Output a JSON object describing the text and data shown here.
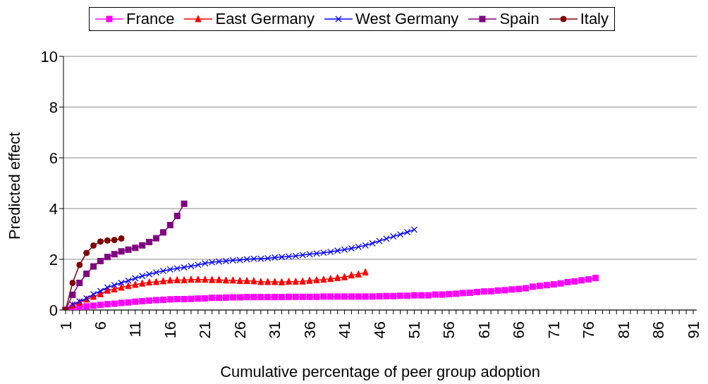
{
  "chart_data": {
    "type": "line",
    "xlabel": "Cumulative percentage of peer group adoption",
    "ylabel": "Predicted effect",
    "categories": [
      "1",
      null,
      null,
      null,
      null,
      "6",
      null,
      null,
      null,
      null,
      "11",
      null,
      null,
      null,
      null,
      "16",
      null,
      null,
      null,
      null,
      "21",
      null,
      null,
      null,
      null,
      "26",
      null,
      null,
      null,
      null,
      "31",
      null,
      null,
      null,
      null,
      "36",
      null,
      null,
      null,
      null,
      "41",
      null,
      null,
      null,
      null,
      "46",
      null,
      null,
      null,
      null,
      "51",
      null,
      null,
      null,
      null,
      "56",
      null,
      null,
      null,
      null,
      "61",
      null,
      null,
      null,
      null,
      "66",
      null,
      null,
      null,
      null,
      "71",
      null,
      null,
      null,
      null,
      "76",
      null,
      null,
      null,
      null,
      "81",
      null,
      null,
      null,
      null,
      "86",
      null,
      null,
      null,
      null,
      "91"
    ],
    "series": [
      {
        "name": "France",
        "color": "#ff00ff",
        "marker": "square",
        "values": [
          0,
          0.09,
          0.12,
          0.14,
          0.17,
          0.2,
          0.23,
          0.25,
          0.28,
          0.3,
          0.33,
          0.35,
          0.37,
          0.39,
          0.4,
          0.42,
          0.43,
          0.43,
          0.44,
          0.45,
          0.46,
          0.48,
          0.48,
          0.49,
          0.5,
          0.5,
          0.51,
          0.51,
          0.51,
          0.51,
          0.51,
          0.51,
          0.52,
          0.52,
          0.52,
          0.52,
          0.52,
          0.53,
          0.53,
          0.53,
          0.53,
          0.53,
          0.53,
          0.53,
          0.53,
          0.54,
          0.55,
          0.55,
          0.56,
          0.56,
          0.58,
          0.58,
          0.58,
          0.61,
          0.61,
          0.63,
          0.64,
          0.67,
          0.68,
          0.71,
          0.73,
          0.74,
          0.77,
          0.78,
          0.81,
          0.83,
          0.86,
          0.92,
          0.95,
          0.98,
          1.01,
          1.05,
          1.1,
          1.13,
          1.17,
          1.21,
          1.26,
          null,
          null,
          null,
          null,
          null,
          null,
          null,
          null,
          null,
          null,
          null,
          null,
          null,
          null
        ]
      },
      {
        "name": "East Germany",
        "color": "#ff0000",
        "marker": "triangle",
        "values": [
          0,
          0.19,
          0.3,
          0.42,
          0.53,
          0.63,
          0.77,
          0.82,
          0.89,
          0.95,
          1.0,
          1.05,
          1.09,
          1.11,
          1.14,
          1.17,
          1.18,
          1.18,
          1.2,
          1.2,
          1.2,
          1.19,
          1.19,
          1.17,
          1.17,
          1.15,
          1.15,
          1.14,
          1.11,
          1.11,
          1.11,
          1.1,
          1.12,
          1.12,
          1.13,
          1.16,
          1.18,
          1.2,
          1.23,
          1.27,
          1.3,
          1.37,
          1.41,
          1.49,
          null,
          null,
          null,
          null,
          null,
          null,
          null,
          null,
          null,
          null,
          null,
          null,
          null,
          null,
          null,
          null,
          null,
          null,
          null,
          null,
          null,
          null,
          null,
          null,
          null,
          null,
          null,
          null,
          null,
          null,
          null,
          null,
          null,
          null,
          null,
          null,
          null,
          null,
          null,
          null,
          null,
          null,
          null,
          null,
          null,
          null,
          null
        ]
      },
      {
        "name": "West Germany",
        "color": "#0000ff",
        "marker": "cross",
        "values": [
          0,
          0.22,
          0.34,
          0.46,
          0.62,
          0.75,
          0.89,
          0.98,
          1.07,
          1.16,
          1.25,
          1.34,
          1.41,
          1.48,
          1.54,
          1.6,
          1.64,
          1.68,
          1.73,
          1.78,
          1.84,
          1.88,
          1.91,
          1.93,
          1.96,
          1.97,
          2.0,
          2.02,
          2.02,
          2.04,
          2.07,
          2.09,
          2.11,
          2.13,
          2.17,
          2.2,
          2.23,
          2.26,
          2.29,
          2.34,
          2.38,
          2.43,
          2.49,
          2.55,
          2.63,
          2.72,
          2.81,
          2.9,
          2.98,
          3.07,
          3.17,
          null,
          null,
          null,
          null,
          null,
          null,
          null,
          null,
          null,
          null,
          null,
          null,
          null,
          null,
          null,
          null,
          null,
          null,
          null,
          null,
          null,
          null,
          null,
          null,
          null,
          null,
          null,
          null,
          null,
          null,
          null,
          null,
          null,
          null,
          null,
          null,
          null,
          null,
          null,
          null
        ]
      },
      {
        "name": "Spain",
        "color": "#800080",
        "marker": "square",
        "values": [
          0,
          0.6,
          1.07,
          1.43,
          1.72,
          1.93,
          2.09,
          2.2,
          2.31,
          2.38,
          2.45,
          2.55,
          2.68,
          2.83,
          3.06,
          3.35,
          3.71,
          4.19,
          null,
          null,
          null,
          null,
          null,
          null,
          null,
          null,
          null,
          null,
          null,
          null,
          null,
          null,
          null,
          null,
          null,
          null,
          null,
          null,
          null,
          null,
          null,
          null,
          null,
          null,
          null,
          null,
          null,
          null,
          null,
          null,
          null,
          null,
          null,
          null,
          null,
          null,
          null,
          null,
          null,
          null,
          null,
          null,
          null,
          null,
          null,
          null,
          null,
          null,
          null,
          null,
          null,
          null,
          null,
          null,
          null,
          null,
          null,
          null,
          null,
          null,
          null,
          null,
          null,
          null,
          null,
          null,
          null,
          null,
          null,
          null,
          null
        ]
      },
      {
        "name": "Italy",
        "color": "#800000",
        "marker": "circle",
        "values": [
          0,
          1.07,
          1.78,
          2.25,
          2.54,
          2.7,
          2.74,
          2.76,
          2.82,
          null,
          null,
          null,
          null,
          null,
          null,
          null,
          null,
          null,
          null,
          null,
          null,
          null,
          null,
          null,
          null,
          null,
          null,
          null,
          null,
          null,
          null,
          null,
          null,
          null,
          null,
          null,
          null,
          null,
          null,
          null,
          null,
          null,
          null,
          null,
          null,
          null,
          null,
          null,
          null,
          null,
          null,
          null,
          null,
          null,
          null,
          null,
          null,
          null,
          null,
          null,
          null,
          null,
          null,
          null,
          null,
          null,
          null,
          null,
          null,
          null,
          null,
          null,
          null,
          null,
          null,
          null,
          null,
          null,
          null,
          null,
          null,
          null,
          null,
          null,
          null,
          null,
          null,
          null,
          null,
          null,
          null
        ]
      }
    ],
    "ylim": [
      0,
      10
    ],
    "yticks": [
      0,
      2,
      4,
      6,
      8,
      10
    ],
    "grid": "y",
    "legend": "top"
  }
}
